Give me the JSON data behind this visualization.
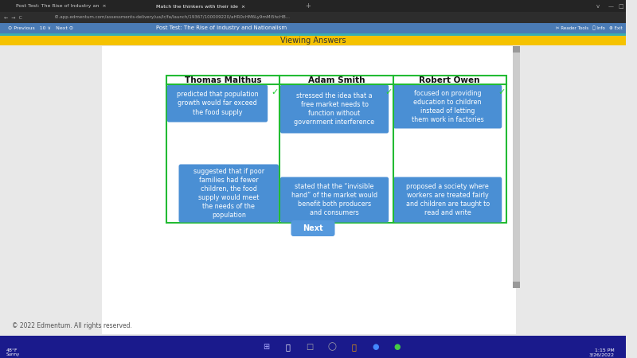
{
  "title": "Viewing Answers",
  "title_bg": "#F5C200",
  "page_bg": "#FFFFFF",
  "outer_bg": "#E8E8E8",
  "tab_bar_bg": "#2A2A2A",
  "nav_bar_bg": "#333333",
  "toolbar_bg": "#4A90C8",
  "toolbar_text": "Post Test: The Rise of Industry and Nationalism",
  "yellow_bar_bg": "#F5C200",
  "columns": [
    "Thomas Malthus",
    "Adam Smith",
    "Robert Owen"
  ],
  "top_cards": [
    "predicted that population\ngrowth would far exceed\nthe food supply",
    "stressed the idea that a\nfree market needs to\nfunction without\ngovernment interference",
    "focused on providing\neducation to children\ninstead of letting\nthem work in factories"
  ],
  "bottom_cards": [
    "suggested that if poor\nfamilies had fewer\nchildren, the food\nsupply would meet\nthe needs of the\npopulation",
    "stated that the “invisible\nhand” of the market would\nbenefit both producers\nand consumers",
    "proposed a society where\nworkers are treated fairly\nand children are taught to\nread and write"
  ],
  "card_bg": "#4A8FD4",
  "card_text_color": "#FFFFFF",
  "check_color": "#22CC33",
  "table_border_color": "#22BB33",
  "next_btn_color": "#5599DD",
  "next_btn_text": "Next",
  "footer_text": "© 2022 Edmentum. All rights reserved.",
  "taskbar_bg": "#1A1A8C",
  "scrollbar_bg": "#CCCCCC",
  "scrollbar_thumb": "#999999"
}
